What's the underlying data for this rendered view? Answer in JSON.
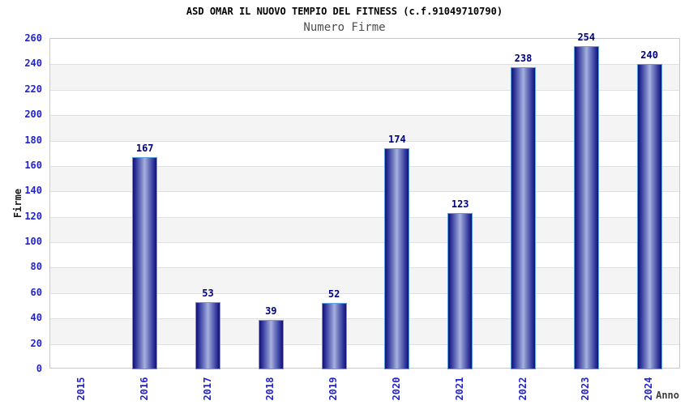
{
  "chart_data": {
    "type": "bar",
    "title": "ASD OMAR IL NUOVO TEMPIO DEL FITNESS (c.f.91049710790)",
    "subtitle": "Numero Firme",
    "xlabel": "Anno",
    "ylabel": "Firme",
    "categories": [
      "2015",
      "2016",
      "2017",
      "2018",
      "2019",
      "2020",
      "2021",
      "2022",
      "2023",
      "2024"
    ],
    "values": [
      null,
      167,
      53,
      39,
      52,
      174,
      123,
      238,
      254,
      240
    ],
    "ylim": [
      0,
      260
    ],
    "ytick_step": 20,
    "yticks": [
      0,
      20,
      40,
      60,
      80,
      100,
      120,
      140,
      160,
      180,
      200,
      220,
      240,
      260
    ],
    "grid": true,
    "legend": "none",
    "alternating_bands": true,
    "colors": {
      "tick_label": "#2323cc",
      "value_label": "#000080",
      "bar_dark": "#12126e",
      "bar_mid": "#2e339b",
      "bar_inner": "#7d87c6",
      "bar_light": "#a9b1e0",
      "bar_border": "#58a0e4",
      "band": "#f4f4f4",
      "gridline": "#e0e0e0",
      "plot_border": "#c9c9c9",
      "title": "#000000",
      "subtitle": "#4d4d4d",
      "axis_label": "#1a1a1a",
      "background": "#ffffff"
    }
  }
}
